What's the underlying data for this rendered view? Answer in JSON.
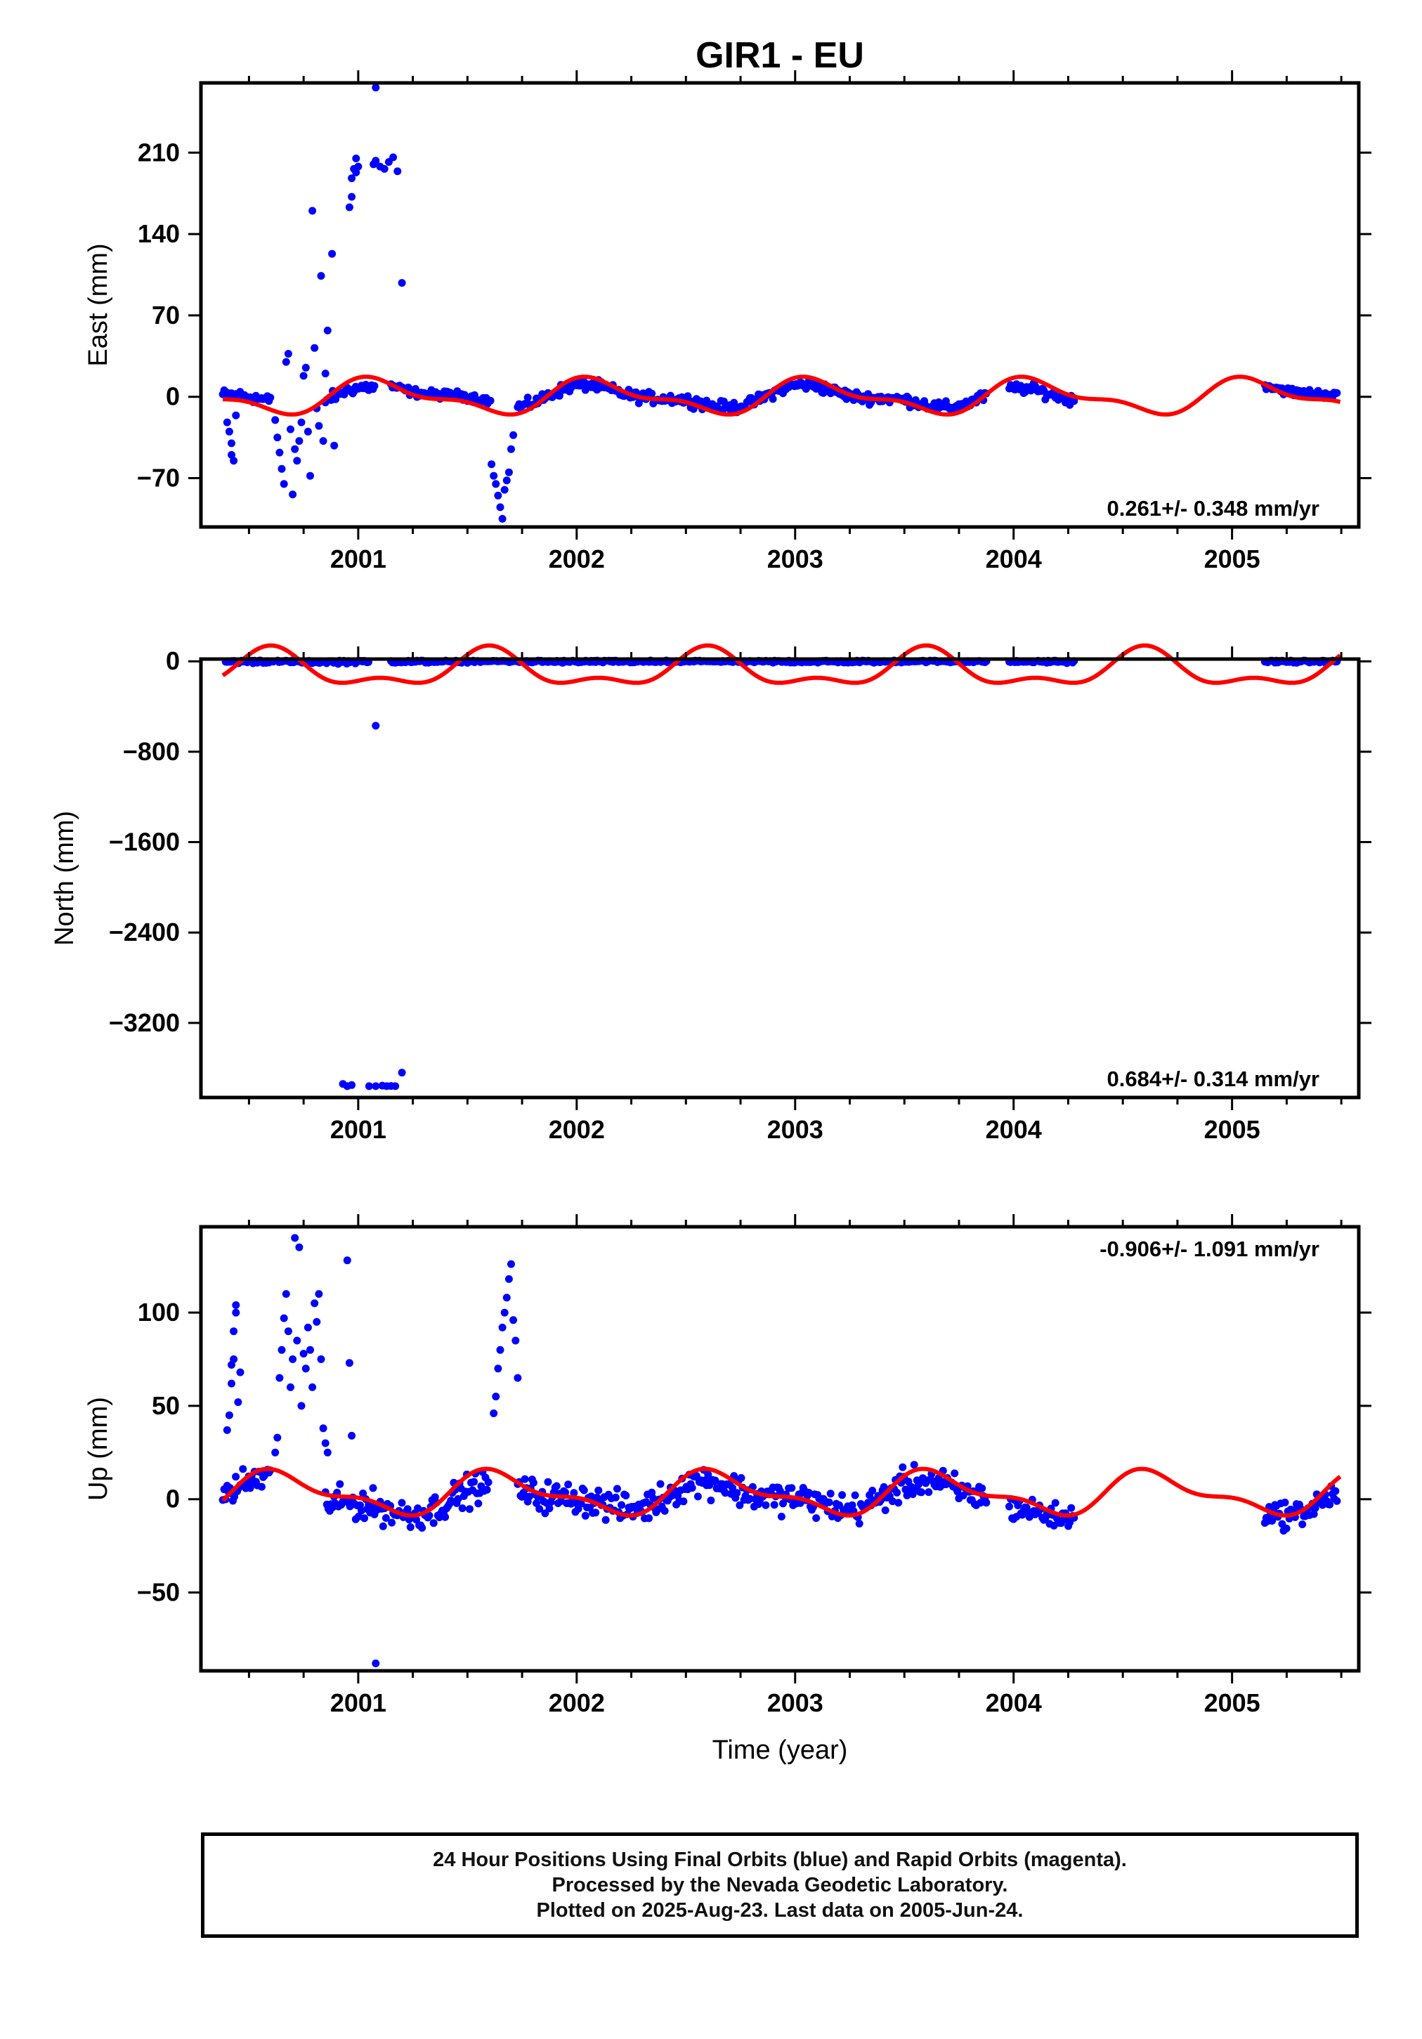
{
  "title": "GIR1 - EU",
  "colors": {
    "points": "#0000ff",
    "model": "#ff0000",
    "axes": "#000000"
  },
  "x_axis": {
    "label": "Time (year)",
    "ticks": [
      2001,
      2002,
      2003,
      2004,
      2005
    ],
    "range": [
      2000.28,
      2005.58
    ]
  },
  "chart_data": [
    {
      "type": "scatter",
      "panel": "east",
      "ylabel": "East (mm)",
      "ylim": [
        -112,
        270
      ],
      "yticks": [
        210,
        140,
        70,
        0,
        -70
      ],
      "ytick_labels": [
        "210",
        "140",
        "70",
        "0",
        "−70"
      ],
      "rate_label": "0.261+/- 0.348 mm/yr",
      "rate_position": "bottom-right",
      "model": {
        "name": "",
        "offset": 0,
        "amplitude": 13,
        "phase_peak": 2001.1,
        "shape": "seasonal"
      },
      "outliers": [
        [
          2000.4,
          -22
        ],
        [
          2000.41,
          -30
        ],
        [
          2000.42,
          -40
        ],
        [
          2000.42,
          -50
        ],
        [
          2000.43,
          -55
        ],
        [
          2000.44,
          -16
        ],
        [
          2000.62,
          -20
        ],
        [
          2000.63,
          -35
        ],
        [
          2000.64,
          -48
        ],
        [
          2000.65,
          -62
        ],
        [
          2000.66,
          -75
        ],
        [
          2000.67,
          30
        ],
        [
          2000.68,
          37
        ],
        [
          2000.69,
          -28
        ],
        [
          2000.7,
          -84
        ],
        [
          2000.71,
          -45
        ],
        [
          2000.72,
          -55
        ],
        [
          2000.73,
          -38
        ],
        [
          2000.74,
          -22
        ],
        [
          2000.75,
          18
        ],
        [
          2000.76,
          25
        ],
        [
          2000.77,
          -30
        ],
        [
          2000.78,
          -68
        ],
        [
          2000.79,
          160
        ],
        [
          2000.8,
          42
        ],
        [
          2000.81,
          -10
        ],
        [
          2000.82,
          -25
        ],
        [
          2000.83,
          104
        ],
        [
          2000.84,
          -38
        ],
        [
          2000.85,
          20
        ],
        [
          2000.86,
          57
        ],
        [
          2000.88,
          123
        ],
        [
          2000.89,
          -42
        ],
        [
          2000.96,
          163
        ],
        [
          2000.97,
          172
        ],
        [
          2000.97,
          188
        ],
        [
          2000.98,
          196
        ],
        [
          2000.99,
          205
        ],
        [
          2000.99,
          193
        ],
        [
          2001.0,
          198
        ],
        [
          2001.07,
          200
        ],
        [
          2001.08,
          203
        ],
        [
          2001.08,
          266
        ],
        [
          2001.1,
          198
        ],
        [
          2001.12,
          196
        ],
        [
          2001.14,
          202
        ],
        [
          2001.16,
          206
        ],
        [
          2001.18,
          194
        ],
        [
          2001.2,
          98
        ],
        [
          2001.61,
          -58
        ],
        [
          2001.62,
          -68
        ],
        [
          2001.63,
          -75
        ],
        [
          2001.64,
          -85
        ],
        [
          2001.65,
          -95
        ],
        [
          2001.66,
          -105
        ],
        [
          2001.67,
          -80
        ],
        [
          2001.68,
          -72
        ],
        [
          2001.69,
          -65
        ],
        [
          2001.7,
          -45
        ],
        [
          2001.71,
          -33
        ]
      ],
      "segments": [
        {
          "from": 2000.38,
          "to": 2000.6,
          "base": 3,
          "spread": 4
        },
        {
          "from": 2000.85,
          "to": 2001.08,
          "base": -2,
          "spread": 4
        },
        {
          "from": 2001.15,
          "to": 2001.61,
          "base": 3,
          "spread": 3
        },
        {
          "from": 2001.73,
          "to": 2003.88,
          "base": 0,
          "spread": 4
        },
        {
          "from": 2003.98,
          "to": 2004.28,
          "base": -3,
          "spread": 4
        },
        {
          "from": 2005.15,
          "to": 2005.48,
          "base": 4,
          "spread": 3
        }
      ]
    },
    {
      "type": "scatter",
      "panel": "north",
      "ylabel": "North (mm)",
      "ylim": [
        -3860,
        20
      ],
      "yticks": [
        0,
        -800,
        -1600,
        -2400,
        -3200
      ],
      "ytick_labels": [
        "0",
        "−800",
        "−1600",
        "−2400",
        "−3200"
      ],
      "rate_label": "0.684+/- 0.314 mm/yr",
      "rate_position": "bottom-right",
      "model": {
        "name": "",
        "offset": -80,
        "amplitude": 220,
        "phase_peak": 2001.1,
        "shape": "north"
      },
      "outliers": [
        [
          2000.93,
          -3740
        ],
        [
          2000.95,
          -3760
        ],
        [
          2000.97,
          -3750
        ],
        [
          2001.05,
          -3760
        ],
        [
          2001.08,
          -3760
        ],
        [
          2001.11,
          -3755
        ],
        [
          2001.13,
          -3760
        ],
        [
          2001.15,
          -3758
        ],
        [
          2001.17,
          -3760
        ],
        [
          2001.2,
          -3640
        ],
        [
          2001.08,
          -570
        ]
      ],
      "segments": [
        {
          "from": 2000.38,
          "to": 2001.05,
          "base": 0,
          "spread": 15
        },
        {
          "from": 2001.15,
          "to": 2003.88,
          "base": 0,
          "spread": 10
        },
        {
          "from": 2003.98,
          "to": 2004.28,
          "base": 0,
          "spread": 10
        },
        {
          "from": 2005.15,
          "to": 2005.48,
          "base": 0,
          "spread": 10
        }
      ]
    },
    {
      "type": "scatter",
      "panel": "up",
      "ylabel": "Up (mm)",
      "ylim": [
        -92,
        146
      ],
      "yticks": [
        100,
        50,
        0,
        -50
      ],
      "ytick_labels": [
        "100",
        "50",
        "0",
        "−50"
      ],
      "rate_label": "-0.906+/- 1.091 mm/yr",
      "rate_position": "top-right",
      "model": {
        "name": "",
        "offset": 3,
        "amplitude": 10,
        "phase_peak": 2000.65,
        "shape": "seasonal"
      },
      "outliers": [
        [
          2000.4,
          37
        ],
        [
          2000.41,
          45
        ],
        [
          2000.42,
          62
        ],
        [
          2000.42,
          72
        ],
        [
          2000.43,
          75
        ],
        [
          2000.43,
          90
        ],
        [
          2000.44,
          100
        ],
        [
          2000.44,
          104
        ],
        [
          2000.45,
          52
        ],
        [
          2000.46,
          68
        ],
        [
          2000.62,
          25
        ],
        [
          2000.63,
          33
        ],
        [
          2000.64,
          65
        ],
        [
          2000.65,
          80
        ],
        [
          2000.66,
          97
        ],
        [
          2000.67,
          110
        ],
        [
          2000.68,
          90
        ],
        [
          2000.69,
          60
        ],
        [
          2000.7,
          75
        ],
        [
          2000.71,
          140
        ],
        [
          2000.72,
          85
        ],
        [
          2000.73,
          135
        ],
        [
          2000.74,
          50
        ],
        [
          2000.75,
          78
        ],
        [
          2000.76,
          70
        ],
        [
          2000.77,
          92
        ],
        [
          2000.78,
          80
        ],
        [
          2000.79,
          60
        ],
        [
          2000.8,
          105
        ],
        [
          2000.81,
          95
        ],
        [
          2000.82,
          110
        ],
        [
          2000.83,
          75
        ],
        [
          2000.84,
          38
        ],
        [
          2000.85,
          30
        ],
        [
          2000.86,
          25
        ],
        [
          2000.95,
          128
        ],
        [
          2000.96,
          73
        ],
        [
          2000.97,
          34
        ],
        [
          2001.08,
          -88
        ],
        [
          2001.62,
          46
        ],
        [
          2001.63,
          55
        ],
        [
          2001.64,
          70
        ],
        [
          2001.65,
          80
        ],
        [
          2001.66,
          92
        ],
        [
          2001.67,
          100
        ],
        [
          2001.68,
          108
        ],
        [
          2001.69,
          118
        ],
        [
          2001.7,
          126
        ],
        [
          2001.71,
          96
        ],
        [
          2001.72,
          85
        ],
        [
          2001.73,
          65
        ]
      ],
      "segments": [
        {
          "from": 2000.38,
          "to": 2000.6,
          "base": 2,
          "spread": 7
        },
        {
          "from": 2000.85,
          "to": 2001.6,
          "base": -3,
          "spread": 7
        },
        {
          "from": 2001.73,
          "to": 2003.88,
          "base": 0,
          "spread": 7
        },
        {
          "from": 2003.98,
          "to": 2004.28,
          "base": -5,
          "spread": 6
        },
        {
          "from": 2005.15,
          "to": 2005.48,
          "base": -3,
          "spread": 6
        }
      ]
    }
  ],
  "caption": {
    "line1": "24 Hour Positions Using Final Orbits (blue) and Rapid Orbits (magenta).",
    "line2": "Processed by the Nevada Geodetic Laboratory.",
    "line3": "Plotted on 2025-Aug-23. Last data on 2005-Jun-24."
  }
}
